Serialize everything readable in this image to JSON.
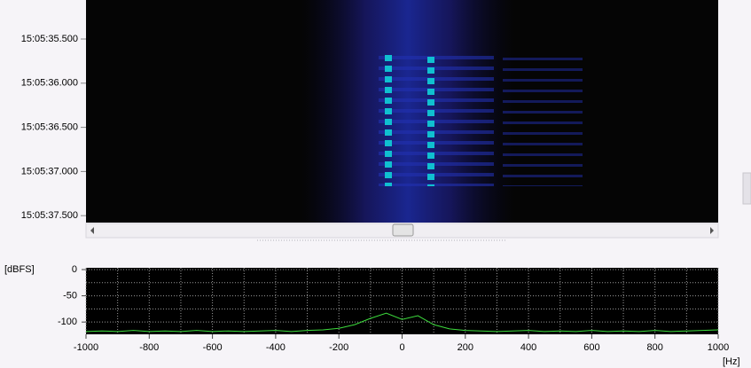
{
  "waterfall": {
    "time_labels": [
      "15:05:35.500",
      "15:05:36.000",
      "15:05:36.500",
      "15:05:37.000",
      "15:05:37.500"
    ]
  },
  "chart_data": {
    "type": "line",
    "y_axis_label": "[dBFS]",
    "x_axis_label": "[Hz]",
    "x": [
      -1000,
      -950,
      -900,
      -850,
      -800,
      -750,
      -700,
      -650,
      -600,
      -550,
      -500,
      -450,
      -400,
      -350,
      -300,
      -250,
      -200,
      -150,
      -100,
      -50,
      0,
      50,
      100,
      150,
      200,
      250,
      300,
      350,
      400,
      450,
      500,
      550,
      600,
      650,
      700,
      750,
      800,
      850,
      900,
      950,
      1000
    ],
    "series": [
      {
        "color": "#3ddc3d",
        "values": [
          -118,
          -117,
          -118,
          -116,
          -118,
          -117,
          -118,
          -116,
          -118,
          -117,
          -118,
          -117,
          -116,
          -118,
          -116,
          -115,
          -112,
          -105,
          -93,
          -83,
          -95,
          -88,
          -105,
          -113,
          -116,
          -117,
          -118,
          -117,
          -116,
          -118,
          -117,
          -118,
          -116,
          -118,
          -117,
          -118,
          -116,
          -118,
          -117,
          -116,
          -115
        ]
      }
    ],
    "xlim": [
      -1000,
      1000
    ],
    "ylim": [
      -120,
      0
    ],
    "xticks": [
      -1000,
      -800,
      -600,
      -400,
      -200,
      0,
      200,
      400,
      600,
      800,
      1000
    ],
    "yticks": [
      0,
      -50,
      -100
    ],
    "minor_xticks": [
      -900,
      -700,
      -500,
      -300,
      -100,
      100,
      300,
      500,
      700,
      900
    ],
    "minor_yticks": [
      -25,
      -75
    ],
    "grid": true
  }
}
